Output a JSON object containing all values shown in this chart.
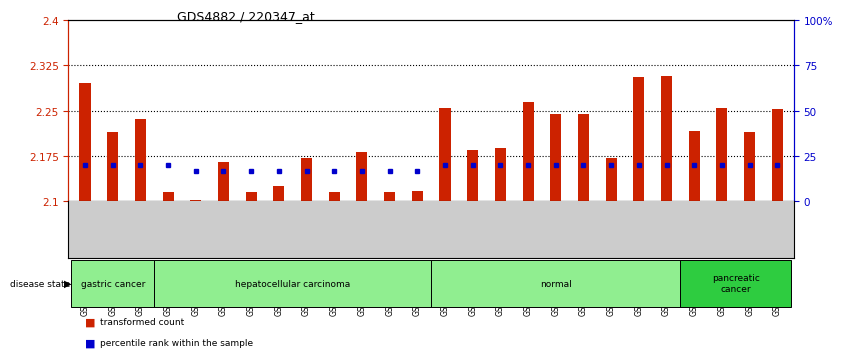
{
  "title": "GDS4882 / 220347_at",
  "samples": [
    "GSM1200291",
    "GSM1200292",
    "GSM1200293",
    "GSM1200294",
    "GSM1200295",
    "GSM1200296",
    "GSM1200297",
    "GSM1200298",
    "GSM1200299",
    "GSM1200300",
    "GSM1200301",
    "GSM1200302",
    "GSM1200303",
    "GSM1200304",
    "GSM1200305",
    "GSM1200306",
    "GSM1200307",
    "GSM1200308",
    "GSM1200309",
    "GSM1200310",
    "GSM1200311",
    "GSM1200312",
    "GSM1200313",
    "GSM1200314",
    "GSM1200315",
    "GSM1200316"
  ],
  "transformed_count": [
    2.295,
    2.215,
    2.237,
    2.115,
    2.102,
    2.165,
    2.115,
    2.125,
    2.172,
    2.115,
    2.182,
    2.115,
    2.117,
    2.255,
    2.185,
    2.188,
    2.265,
    2.245,
    2.244,
    2.172,
    2.305,
    2.308,
    2.217,
    2.255,
    2.215,
    2.252
  ],
  "percentile_rank": [
    20,
    20,
    20,
    20,
    17,
    17,
    17,
    17,
    17,
    17,
    17,
    17,
    17,
    20,
    20,
    20,
    20,
    20,
    20,
    20,
    20,
    20,
    20,
    20,
    20,
    20
  ],
  "baseline": 2.1,
  "ylim_left": [
    2.1,
    2.4
  ],
  "ylim_right": [
    0,
    100
  ],
  "yticks_left": [
    2.1,
    2.175,
    2.25,
    2.325,
    2.4
  ],
  "yticks_right": [
    0,
    25,
    50,
    75,
    100
  ],
  "groups": [
    {
      "label": "gastric cancer",
      "start": 0,
      "end": 3,
      "color": "#90EE90"
    },
    {
      "label": "hepatocellular carcinoma",
      "start": 3,
      "end": 13,
      "color": "#90EE90"
    },
    {
      "label": "normal",
      "start": 13,
      "end": 22,
      "color": "#90EE90"
    },
    {
      "label": "pancreatic\ncancer",
      "start": 22,
      "end": 26,
      "color": "#2ECC40"
    }
  ],
  "bar_color": "#CC2200",
  "marker_color": "#0000CC",
  "bg_color": "#FFFFFF",
  "grid_color": "#000000",
  "left_axis_color": "#CC2200",
  "right_axis_color": "#0000CC",
  "tick_bg_color": "#CCCCCC"
}
